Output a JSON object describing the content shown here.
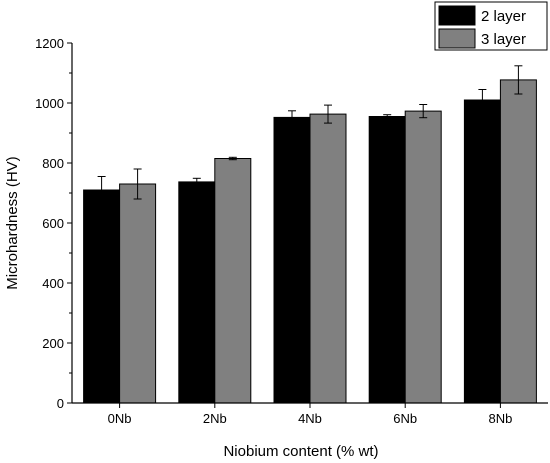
{
  "chart_data": {
    "type": "bar",
    "categories": [
      "0Nb",
      "2Nb",
      "4Nb",
      "6Nb",
      "8Nb"
    ],
    "series": [
      {
        "name": "2 layer",
        "color": "#000000",
        "values": [
          710,
          737,
          952,
          955,
          1010
        ],
        "errors": [
          45,
          12,
          22,
          6,
          35
        ]
      },
      {
        "name": "3 layer",
        "color": "#808080",
        "values": [
          730,
          815,
          963,
          973,
          1077
        ],
        "errors": [
          50,
          4,
          30,
          22,
          47
        ]
      }
    ],
    "xlabel": "Niobium content (% wt)",
    "ylabel": "Microhardness (HV)",
    "ylim": [
      0,
      1200
    ],
    "yticks": [
      0,
      200,
      400,
      600,
      800,
      1000,
      1200
    ],
    "grid": false,
    "legend": "top-right"
  }
}
